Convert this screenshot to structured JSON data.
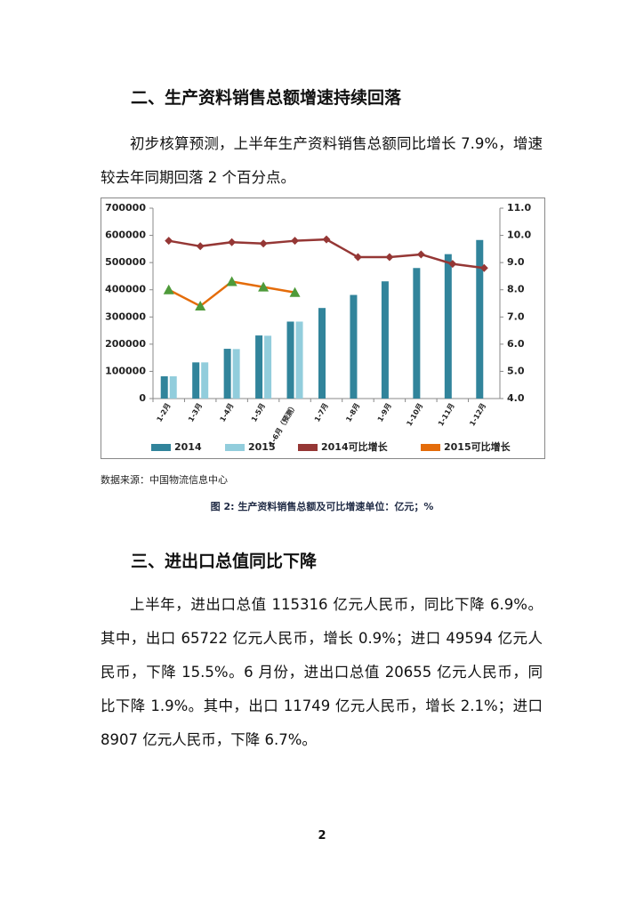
{
  "section_1": {
    "heading": "二、生产资料销售总额增速持续回落",
    "paragraph": "初步核算预测，上半年生产资料销售总额同比增长 7.9%，增速较去年同期回落 2 个百分点。"
  },
  "chart_data": {
    "type": "bar",
    "categories": [
      "1-2月",
      "1-3月",
      "1-4月",
      "1-5月",
      "1-6月（预测）",
      "1-7月",
      "1-8月",
      "1-9月",
      "1-10月",
      "1-11月",
      "1-12月"
    ],
    "series": [
      {
        "name": "2014",
        "type": "bar",
        "color": "#31849b",
        "values": [
          82000,
          133000,
          183000,
          232000,
          283000,
          333000,
          381000,
          431000,
          480000,
          531000,
          583000
        ]
      },
      {
        "name": "2015",
        "type": "bar",
        "color": "#92cddc",
        "values": [
          82000,
          133000,
          182000,
          231000,
          283000,
          null,
          null,
          null,
          null,
          null,
          null
        ]
      },
      {
        "name": "2014可比增长",
        "type": "line",
        "axis": "y2",
        "color": "#953735",
        "marker": "diamond",
        "marker_color": "#953735",
        "values": [
          9.8,
          9.6,
          9.75,
          9.7,
          9.8,
          9.85,
          9.2,
          9.2,
          9.3,
          8.95,
          8.8
        ]
      },
      {
        "name": "2015可比增长",
        "type": "line",
        "axis": "y2",
        "color": "#e46c0a",
        "marker": "triangle",
        "marker_color": "#4e9a3a",
        "values": [
          8.0,
          7.4,
          8.3,
          8.1,
          7.9,
          null,
          null,
          null,
          null,
          null,
          null
        ]
      }
    ],
    "ylim": [
      0,
      700000
    ],
    "yticks": [
      0,
      100000,
      200000,
      300000,
      400000,
      500000,
      600000,
      700000
    ],
    "y2lim": [
      4,
      11
    ],
    "y2ticks": [
      {
        "value": 4,
        "label": "4.0"
      },
      {
        "value": 5,
        "label": "5.0"
      },
      {
        "value": 6,
        "label": "6.0"
      },
      {
        "value": 7,
        "label": "7.0"
      },
      {
        "value": 8,
        "label": "8.0"
      },
      {
        "value": 9,
        "label": "9.0"
      },
      {
        "value": 10,
        "label": "10.0"
      },
      {
        "value": 11,
        "label": "11.0"
      }
    ],
    "grid": false,
    "legend": "bottom"
  },
  "chart_source": "数据来源：中国物流信息中心",
  "chart_caption": "图 2: 生产资料销售总额及可比增速单位：亿元；%",
  "section_2": {
    "heading": "三、进出口总值同比下降",
    "paragraph": "上半年，进出口总值 115316 亿元人民币，同比下降 6.9%。其中，出口 65722 亿元人民币，增长 0.9%；进口 49594 亿元人民币，下降 15.5%。6 月份，进出口总值 20655 亿元人民币，同比下降 1.9%。其中，出口 11749 亿元人民币，增长 2.1%；进口 8907 亿元人民币，下降 6.7%。"
  },
  "page_number": "2"
}
